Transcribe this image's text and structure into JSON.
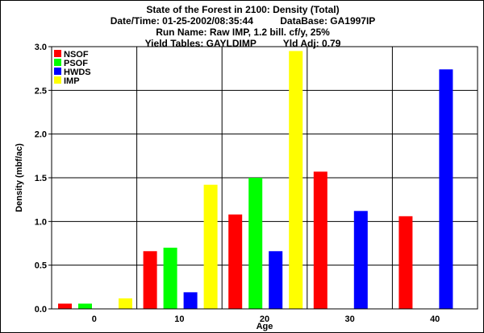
{
  "header": {
    "line1": "State of the Forest in 2100: Density (Total)",
    "line2_label": "Date/Time: 01-25-2002/08:35:44",
    "line2_db": "DataBase: GA1997IP",
    "line3": "Run Name: Raw IMP, 1.2 bill. cf/y, 25%",
    "line4_label": "Yield Tables: GAYLDIMP",
    "line4_adj": "Yld Adj: 0.79"
  },
  "chart_data": {
    "type": "bar",
    "title": "State of the Forest in 2100: Density (Total)",
    "xlabel": "Age",
    "ylabel": "Density (mbf/ac)",
    "categories": [
      "0",
      "10",
      "20",
      "30",
      "40"
    ],
    "ylim": [
      0,
      3.0
    ],
    "yticks": [
      "0.0",
      "0.5",
      "1.0",
      "1.5",
      "2.0",
      "2.5",
      "3.0"
    ],
    "grid": true,
    "legend_position": "top-left",
    "series": [
      {
        "name": "NSOF",
        "color": "#ff0000",
        "values": [
          0.06,
          0.66,
          1.08,
          1.57,
          1.06
        ]
      },
      {
        "name": "PSOF",
        "color": "#00ff00",
        "values": [
          0.06,
          0.7,
          1.5,
          0,
          0
        ]
      },
      {
        "name": "HWDS",
        "color": "#0000ff",
        "values": [
          0,
          0.19,
          0.66,
          1.12,
          2.74
        ]
      },
      {
        "name": "IMP",
        "color": "#ffff00",
        "values": [
          0.12,
          1.42,
          2.95,
          0,
          0
        ]
      }
    ]
  }
}
